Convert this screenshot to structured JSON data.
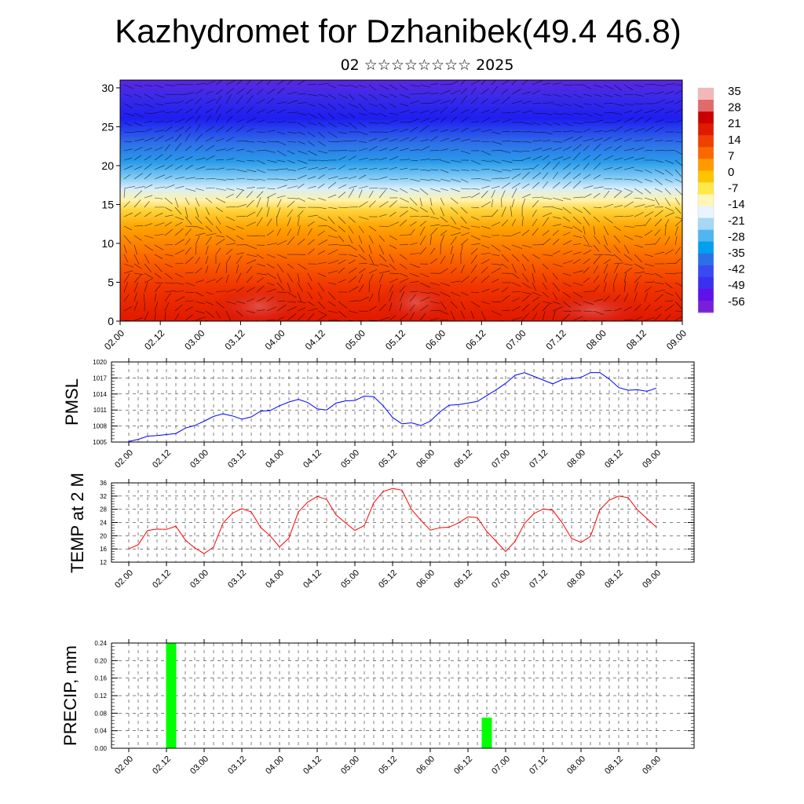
{
  "header": {
    "title": "Kazhydromet for Dzhanibek(49.4 46.8)",
    "subtitle": "02 ☆☆☆☆☆☆☆☆ 2025"
  },
  "colors": {
    "pmsl_line": "#0000ff",
    "temp_line": "#ff0000",
    "precip_bar": "#00ff00",
    "grid": "#000000"
  },
  "chart_data": [
    {
      "type": "heatmap",
      "title": "",
      "xlabel": "",
      "ylabel": "",
      "x_ticks": [
        "02.00",
        "02.12",
        "03.00",
        "03.12",
        "04.00",
        "04.12",
        "05.00",
        "05.12",
        "06.00",
        "06.12",
        "07.00",
        "07.12",
        "08.00",
        "08.12",
        "09.00"
      ],
      "y_ticks": [
        0,
        5,
        10,
        15,
        20,
        25,
        30
      ],
      "ylim": [
        0,
        31
      ],
      "colorbar_labels": [
        "35",
        "28",
        "21",
        "14",
        "7",
        "0",
        "-7",
        "-14",
        "-21",
        "-28",
        "-35",
        "-42",
        "-49",
        "-56"
      ],
      "colorbar_colors": [
        "#f2b8b8",
        "#e06b6b",
        "#cc0000",
        "#e01a00",
        "#f04000",
        "#f86a00",
        "#ff9a00",
        "#ffc400",
        "#ffe84a",
        "#fff6b8",
        "#e8f4ff",
        "#a6d8f4",
        "#4fb6f2",
        "#00a0ee",
        "#2a70e6",
        "#3a4af0",
        "#3a30f0",
        "#6010e8",
        "#7820d8"
      ],
      "overlay": "wind vectors"
    },
    {
      "type": "line",
      "ylabel": "PMSL",
      "x_ticks": [
        "02.00",
        "02.12",
        "03.00",
        "03.12",
        "04.00",
        "04.12",
        "05.00",
        "05.12",
        "06.00",
        "06.12",
        "07.00",
        "07.12",
        "08.00",
        "08.12",
        "09.00"
      ],
      "y_ticks": [
        "1005",
        "1008",
        "1011",
        "1014",
        "1017",
        "1020"
      ],
      "ylim": [
        1005,
        1020
      ],
      "grid": true,
      "series": [
        {
          "x": [
            0,
            1,
            2,
            3,
            4,
            5,
            6,
            7,
            8,
            9,
            10,
            11,
            12,
            13,
            14,
            15,
            16,
            17,
            18,
            19,
            20,
            21,
            22,
            23,
            24,
            25,
            26,
            27,
            28,
            29,
            30,
            31,
            32,
            33,
            34,
            35,
            36,
            37,
            38,
            39,
            40,
            41,
            42,
            43,
            44,
            45,
            46,
            47,
            48,
            49,
            50,
            51,
            52,
            53,
            54,
            55,
            56
          ],
          "values": [
            1005.1,
            1005.5,
            1006.1,
            1006.2,
            1006.4,
            1006.6,
            1007.6,
            1008.1,
            1008.9,
            1009.8,
            1010.3,
            1009.9,
            1009.3,
            1009.7,
            1010.8,
            1010.9,
            1011.8,
            1012.5,
            1013.0,
            1012.4,
            1011.2,
            1011.0,
            1012.3,
            1012.7,
            1012.8,
            1013.6,
            1013.5,
            1011.8,
            1009.6,
            1008.4,
            1008.6,
            1008.1,
            1008.9,
            1010.6,
            1011.9,
            1012.0,
            1012.3,
            1012.6,
            1013.7,
            1014.8,
            1016.0,
            1017.5,
            1018.0,
            1017.3,
            1016.6,
            1015.9,
            1016.7,
            1016.9,
            1017.1,
            1018.0,
            1018.0,
            1016.8,
            1015.2,
            1014.7,
            1014.8,
            1014.5,
            1015.1
          ]
        }
      ]
    },
    {
      "type": "line",
      "ylabel": "TEMP at 2 M",
      "x_ticks": [
        "02.00",
        "02.12",
        "03.00",
        "03.12",
        "04.00",
        "04.12",
        "05.00",
        "05.12",
        "06.00",
        "06.12",
        "07.00",
        "07.12",
        "08.00",
        "08.12",
        "09.00"
      ],
      "y_ticks": [
        "12",
        "16",
        "20",
        "24",
        "28",
        "32",
        "36"
      ],
      "ylim": [
        12,
        36
      ],
      "grid": true,
      "series": [
        {
          "x": [
            0,
            1,
            2,
            3,
            4,
            5,
            6,
            7,
            8,
            9,
            10,
            11,
            12,
            13,
            14,
            15,
            16,
            17,
            18,
            19,
            20,
            21,
            22,
            23,
            24,
            25,
            26,
            27,
            28,
            29,
            30,
            31,
            32,
            33,
            34,
            35,
            36,
            37,
            38,
            39,
            40,
            41,
            42,
            43,
            44,
            45,
            46,
            47,
            48,
            49,
            50,
            51,
            52,
            53,
            54,
            55,
            56
          ],
          "values": [
            16.0,
            17.3,
            21.6,
            22.0,
            21.9,
            22.9,
            18.7,
            16.3,
            14.6,
            16.6,
            23.8,
            26.8,
            28.2,
            27.2,
            22.5,
            20.0,
            16.6,
            19.3,
            27.2,
            30.2,
            31.9,
            31.0,
            26.3,
            23.9,
            21.6,
            23.1,
            30.0,
            33.4,
            34.3,
            33.8,
            28.0,
            24.7,
            21.7,
            22.4,
            22.6,
            23.9,
            25.7,
            25.5,
            21.3,
            18.3,
            15.2,
            18.3,
            23.7,
            26.7,
            28.1,
            27.7,
            23.9,
            19.2,
            18.0,
            19.8,
            27.9,
            30.8,
            32.0,
            31.5,
            27.8,
            25.2,
            22.6
          ]
        }
      ]
    },
    {
      "type": "bar",
      "ylabel": "PRECIP, mm",
      "x_ticks": [
        "02.00",
        "02.12",
        "03.00",
        "03.12",
        "04.00",
        "04.12",
        "05.00",
        "05.12",
        "06.00",
        "06.12",
        "07.00",
        "07.12",
        "08.00",
        "08.12",
        "09.00"
      ],
      "y_ticks": [
        "0.00",
        "0.04",
        "0.08",
        "0.12",
        "0.16",
        "0.20",
        "0.24"
      ],
      "ylim": [
        0,
        0.24
      ],
      "grid": true,
      "bars": [
        {
          "x": 4.5,
          "value": 0.24
        },
        {
          "x": 38.0,
          "value": 0.07
        }
      ]
    }
  ]
}
